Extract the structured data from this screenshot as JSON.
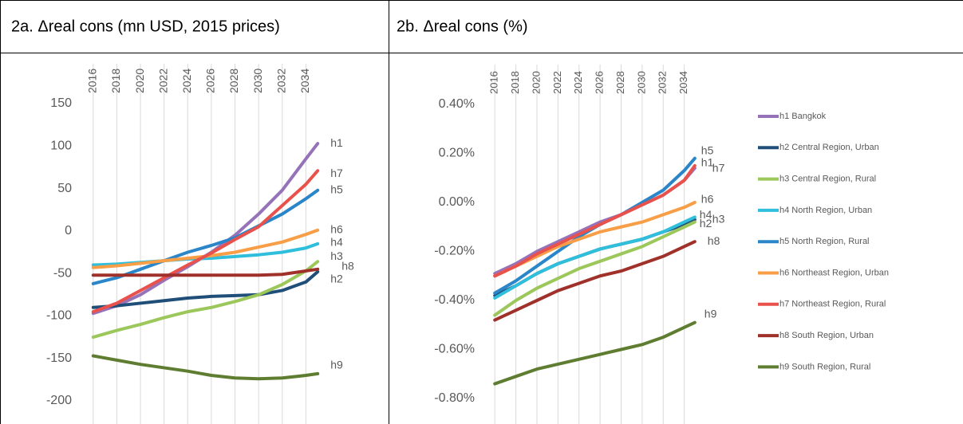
{
  "chart_data": [
    {
      "type": "line",
      "title": "2a. Δreal cons (mn USD, 2015 prices)",
      "x": [
        2016,
        2018,
        2020,
        2022,
        2024,
        2026,
        2028,
        2030,
        2032,
        2034,
        2035
      ],
      "xlim": [
        2015,
        2036
      ],
      "xticks": [
        2016,
        2018,
        2020,
        2022,
        2024,
        2026,
        2028,
        2030,
        2032,
        2034
      ],
      "ylim": [
        -200,
        150
      ],
      "yticks": [
        -200,
        -150,
        -100,
        -50,
        0,
        50,
        100,
        150
      ],
      "grid": "x",
      "series": [
        {
          "label": "h1",
          "color": "#9673b9",
          "values": [
            -97,
            -88,
            -75,
            -58,
            -42,
            -25,
            -5,
            20,
            48,
            85,
            103
          ]
        },
        {
          "label": "h2",
          "color": "#1f4e79",
          "values": [
            -90,
            -88,
            -85,
            -82,
            -79,
            -77,
            -76,
            -75,
            -70,
            -60,
            -48
          ]
        },
        {
          "label": "h3",
          "color": "#9bc75b",
          "values": [
            -125,
            -117,
            -110,
            -102,
            -95,
            -90,
            -83,
            -75,
            -63,
            -47,
            -36
          ]
        },
        {
          "label": "h4",
          "color": "#2fbedb",
          "values": [
            -40,
            -39,
            -37,
            -35,
            -33,
            -32,
            -30,
            -28,
            -25,
            -20,
            -15
          ]
        },
        {
          "label": "h5",
          "color": "#2a86c8",
          "values": [
            -62,
            -55,
            -45,
            -35,
            -25,
            -17,
            -8,
            6,
            20,
            38,
            48
          ]
        },
        {
          "label": "h6",
          "color": "#f79e46",
          "values": [
            -43,
            -41,
            -38,
            -35,
            -32,
            -29,
            -25,
            -19,
            -13,
            -4,
            1
          ]
        },
        {
          "label": "h7",
          "color": "#e9524c",
          "values": [
            -95,
            -85,
            -70,
            -55,
            -40,
            -26,
            -10,
            5,
            30,
            55,
            71
          ]
        },
        {
          "label": "h8",
          "color": "#a0302a",
          "values": [
            -52,
            -52,
            -52,
            -52,
            -52,
            -52,
            -52,
            -52,
            -51,
            -47,
            -45
          ]
        },
        {
          "label": "h9",
          "color": "#5e7d30",
          "values": [
            -147,
            -152,
            -157,
            -161,
            -165,
            -170,
            -173,
            -174,
            -173,
            -170,
            -168
          ]
        }
      ]
    },
    {
      "type": "line",
      "title": "2b. Δreal cons (%)",
      "x": [
        2016,
        2018,
        2020,
        2022,
        2024,
        2026,
        2028,
        2030,
        2032,
        2034,
        2035
      ],
      "xlim": [
        2015,
        2036
      ],
      "xticks": [
        2016,
        2018,
        2020,
        2022,
        2024,
        2026,
        2028,
        2030,
        2032,
        2034
      ],
      "ylim": [
        -0.8,
        0.4
      ],
      "yticks": [
        {
          "value": -0.8,
          "label": "-0.80%"
        },
        {
          "value": -0.6,
          "label": "-0.60%"
        },
        {
          "value": -0.4,
          "label": "-0.40%"
        },
        {
          "value": -0.2,
          "label": "-0.20%"
        },
        {
          "value": 0,
          "label": "0.00%"
        },
        {
          "value": 0.2,
          "label": "0.20%"
        },
        {
          "value": 0.4,
          "label": "0.40%"
        }
      ],
      "grid": "x",
      "legend": "right",
      "series": [
        {
          "name": "h1 Bangkok",
          "label": "h1",
          "color": "#9673b9",
          "values": [
            -0.29,
            -0.25,
            -0.2,
            -0.16,
            -0.12,
            -0.08,
            -0.05,
            -0.01,
            0.03,
            0.09,
            0.14
          ]
        },
        {
          "name": "h2 Central Region, Urban",
          "label": "h2",
          "color": "#1f4e79",
          "values": [
            -0.38,
            -0.34,
            -0.29,
            -0.25,
            -0.22,
            -0.19,
            -0.17,
            -0.15,
            -0.12,
            -0.09,
            -0.07
          ]
        },
        {
          "name": "h3 Central Region, Rural",
          "label": "h3",
          "color": "#9bc75b",
          "values": [
            -0.46,
            -0.4,
            -0.35,
            -0.31,
            -0.27,
            -0.24,
            -0.21,
            -0.18,
            -0.14,
            -0.1,
            -0.08
          ]
        },
        {
          "name": "h4 North Region, Urban",
          "label": "h4",
          "color": "#2fbedb",
          "values": [
            -0.39,
            -0.34,
            -0.29,
            -0.25,
            -0.22,
            -0.19,
            -0.17,
            -0.15,
            -0.12,
            -0.08,
            -0.06
          ]
        },
        {
          "name": "h5 North Region, Rural",
          "label": "h5",
          "color": "#2a86c8",
          "values": [
            -0.37,
            -0.32,
            -0.26,
            -0.2,
            -0.14,
            -0.09,
            -0.05,
            0,
            0.05,
            0.13,
            0.18
          ]
        },
        {
          "name": "h6 Northeast Region, Urban",
          "label": "h6",
          "color": "#f79e46",
          "values": [
            -0.3,
            -0.26,
            -0.22,
            -0.18,
            -0.15,
            -0.12,
            -0.1,
            -0.08,
            -0.05,
            -0.02,
            0
          ]
        },
        {
          "name": "h7 Northeast Region, Rural",
          "label": "h7",
          "color": "#e9524c",
          "values": [
            -0.3,
            -0.26,
            -0.21,
            -0.17,
            -0.13,
            -0.09,
            -0.05,
            -0.01,
            0.03,
            0.09,
            0.15
          ]
        },
        {
          "name": "h8 South Region, Urban",
          "label": "h8",
          "color": "#a0302a",
          "values": [
            -0.48,
            -0.44,
            -0.4,
            -0.36,
            -0.33,
            -0.3,
            -0.28,
            -0.25,
            -0.22,
            -0.18,
            -0.16
          ]
        },
        {
          "name": "h9 South Region, Rural",
          "label": "h9",
          "color": "#5e7d30",
          "values": [
            -0.74,
            -0.71,
            -0.68,
            -0.66,
            -0.64,
            -0.62,
            -0.6,
            -0.58,
            -0.55,
            -0.51,
            -0.49
          ]
        }
      ]
    }
  ]
}
